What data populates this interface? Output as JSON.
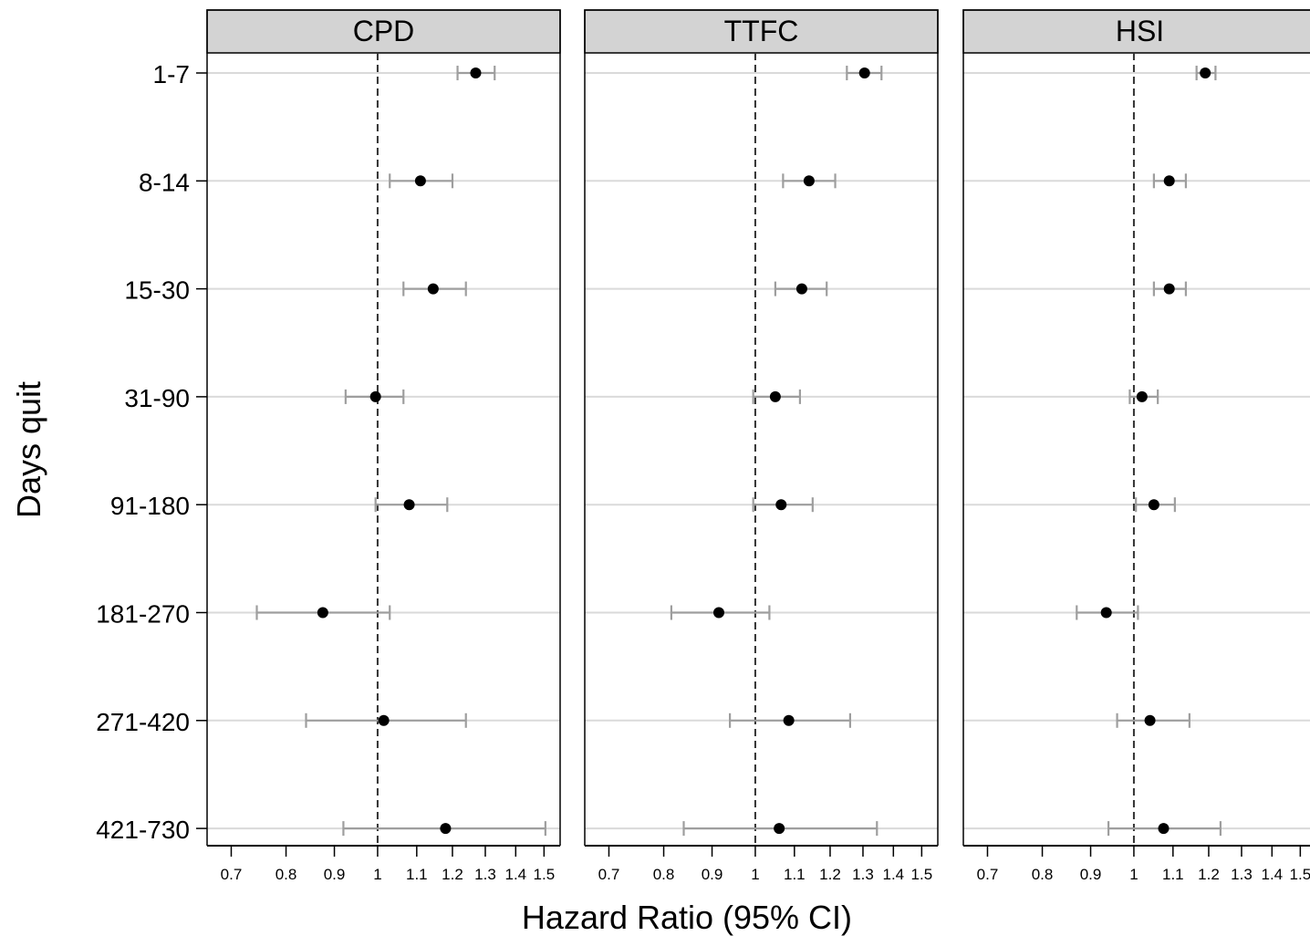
{
  "chart_data": {
    "type": "forest",
    "xlabel": "Hazard Ratio (95% CI)",
    "ylabel": "Days quit",
    "x_scale": "log",
    "xlim": [
      0.66,
      1.56
    ],
    "x_ticks": [
      0.7,
      0.8,
      0.9,
      1,
      1.1,
      1.2,
      1.3,
      1.4,
      1.5
    ],
    "reference_line": 1,
    "categories": [
      "1-7",
      "8-14",
      "15-30",
      "31-90",
      "91-180",
      "181-270",
      "271-420",
      "421-730"
    ],
    "panels": [
      {
        "name": "CPD",
        "estimates": [
          1.27,
          1.11,
          1.145,
          0.995,
          1.08,
          0.875,
          1.015,
          1.18
        ],
        "lower": [
          1.215,
          1.03,
          1.065,
          0.925,
          0.995,
          0.745,
          0.84,
          0.92
        ],
        "upper": [
          1.33,
          1.2,
          1.24,
          1.065,
          1.185,
          1.03,
          1.24,
          1.505
        ]
      },
      {
        "name": "TTFC",
        "estimates": [
          1.305,
          1.14,
          1.12,
          1.05,
          1.065,
          0.915,
          1.085,
          1.06
        ],
        "lower": [
          1.25,
          1.07,
          1.05,
          0.995,
          0.995,
          0.815,
          0.94,
          0.84
        ],
        "upper": [
          1.36,
          1.215,
          1.19,
          1.115,
          1.15,
          1.035,
          1.26,
          1.345
        ]
      },
      {
        "name": "HSI",
        "estimates": [
          1.19,
          1.09,
          1.09,
          1.02,
          1.05,
          0.935,
          1.04,
          1.075
        ],
        "lower": [
          1.165,
          1.05,
          1.05,
          0.99,
          1.005,
          0.87,
          0.96,
          0.94
        ],
        "upper": [
          1.22,
          1.135,
          1.135,
          1.06,
          1.105,
          1.01,
          1.145,
          1.235
        ]
      }
    ]
  }
}
